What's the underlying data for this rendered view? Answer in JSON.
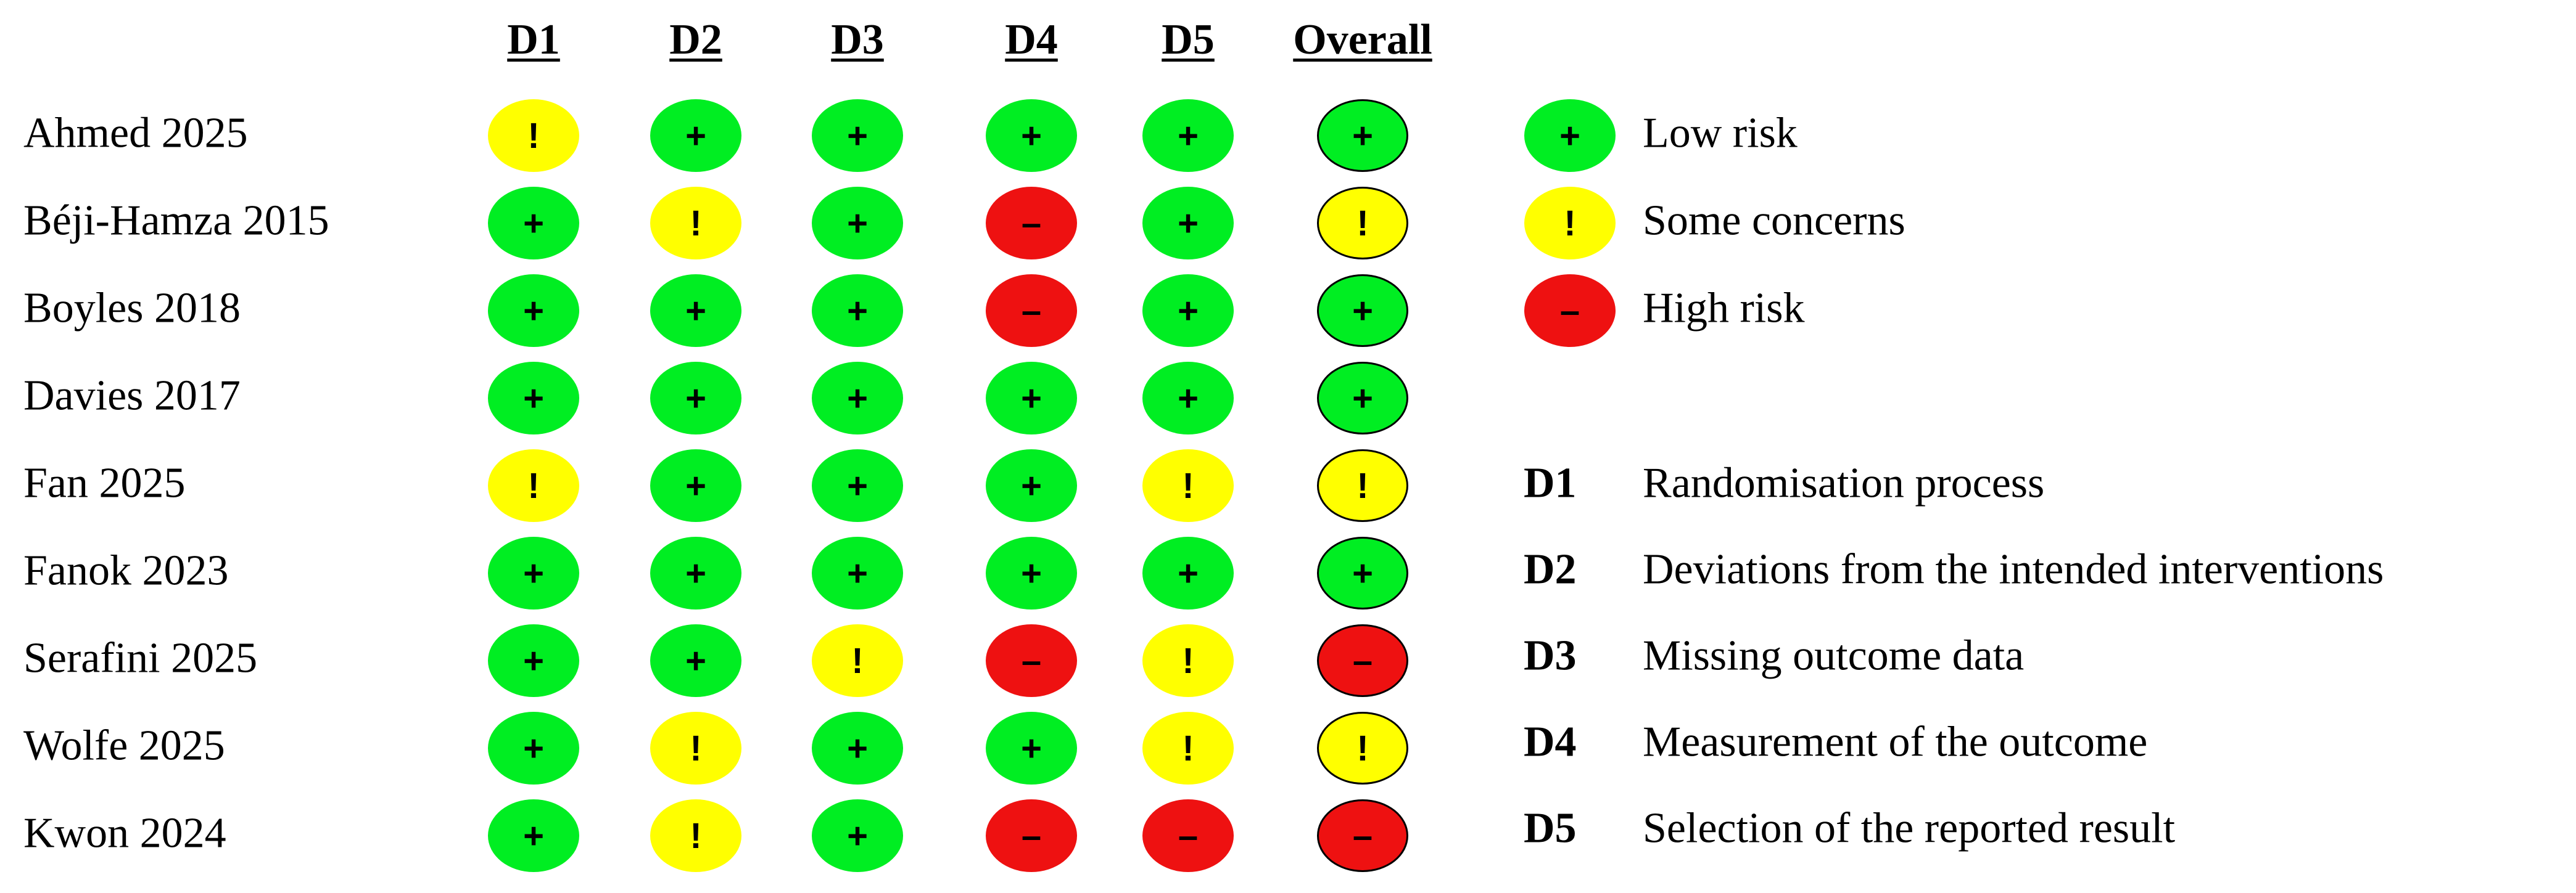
{
  "headers": [
    "D1",
    "D2",
    "D3",
    "D4",
    "D5",
    "Overall"
  ],
  "symbols": {
    "low": "+",
    "some": "!",
    "high": "–"
  },
  "colors": {
    "low": "#00ee22",
    "some": "#ffff00",
    "high": "#ee1111"
  },
  "studies": [
    {
      "name": "Ahmed 2025",
      "ratings": [
        "some",
        "low",
        "low",
        "low",
        "low",
        "low"
      ]
    },
    {
      "name": "Béji-Hamza 2015",
      "ratings": [
        "low",
        "some",
        "low",
        "high",
        "low",
        "some"
      ]
    },
    {
      "name": "Boyles 2018",
      "ratings": [
        "low",
        "low",
        "low",
        "high",
        "low",
        "low"
      ]
    },
    {
      "name": "Davies 2017",
      "ratings": [
        "low",
        "low",
        "low",
        "low",
        "low",
        "low"
      ]
    },
    {
      "name": "Fan 2025",
      "ratings": [
        "some",
        "low",
        "low",
        "low",
        "some",
        "some"
      ]
    },
    {
      "name": "Fanok 2023",
      "ratings": [
        "low",
        "low",
        "low",
        "low",
        "low",
        "low"
      ]
    },
    {
      "name": "Serafini 2025",
      "ratings": [
        "low",
        "low",
        "some",
        "high",
        "some",
        "high"
      ]
    },
    {
      "name": "Wolfe  2025",
      "ratings": [
        "low",
        "some",
        "low",
        "low",
        "some",
        "some"
      ]
    },
    {
      "name": "Kwon  2024",
      "ratings": [
        "low",
        "some",
        "low",
        "high",
        "high",
        "high"
      ]
    }
  ],
  "legend": {
    "risk": [
      {
        "level": "low",
        "label": "Low risk"
      },
      {
        "level": "some",
        "label": "Some concerns"
      },
      {
        "level": "high",
        "label": "High risk"
      }
    ],
    "domains": [
      {
        "code": "D1",
        "label": "Randomisation process"
      },
      {
        "code": "D2",
        "label": "Deviations from the intended interventions"
      },
      {
        "code": "D3",
        "label": "Missing outcome data"
      },
      {
        "code": "D4",
        "label": "Measurement of the outcome"
      },
      {
        "code": "D5",
        "label": "Selection of the reported result"
      }
    ]
  }
}
